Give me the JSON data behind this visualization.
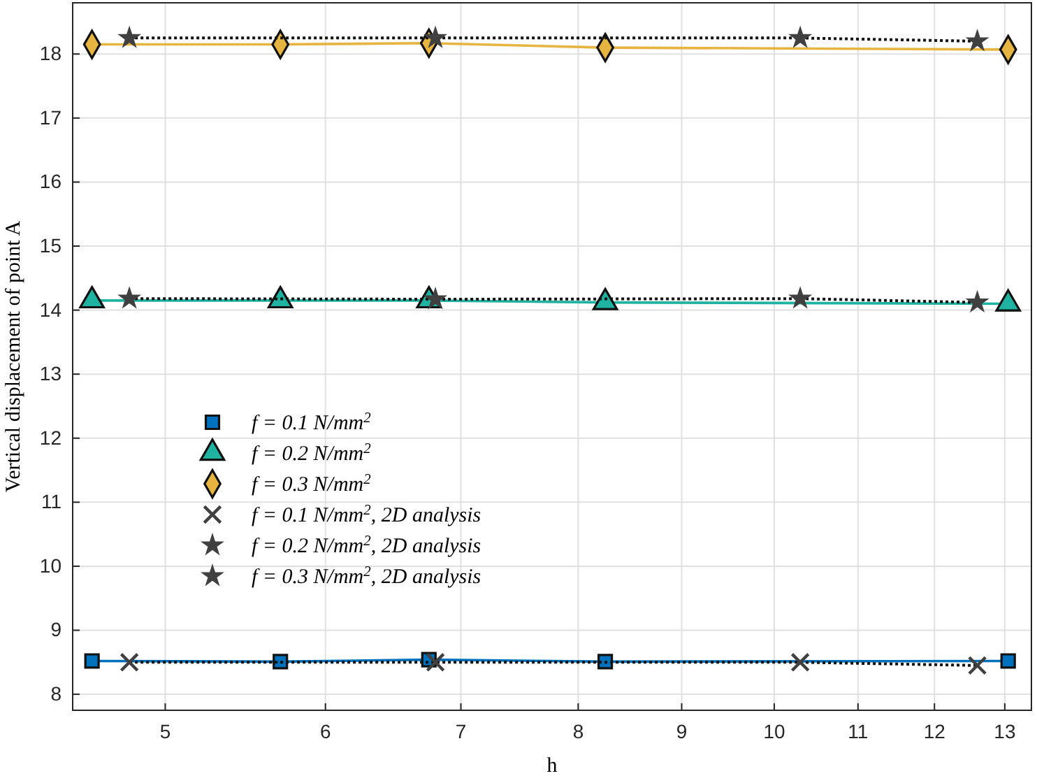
{
  "chart_data": {
    "type": "line",
    "xlabel": "h",
    "ylabel": "Vertical displacement of point A",
    "log": "x",
    "xlim": [
      4.5,
      13.4
    ],
    "xticks": [
      5,
      6,
      7,
      8,
      9,
      10,
      11,
      12,
      13
    ],
    "ylim": [
      7.75,
      18.8
    ],
    "yticks": [
      8,
      9,
      10,
      11,
      12,
      13,
      14,
      15,
      16,
      17,
      18
    ],
    "grid": true,
    "legend": "left",
    "series": [
      {
        "name": "f = 0.1 N/mm$^{2}$",
        "color": "#0072bd",
        "marker": "square",
        "line_style": "solid",
        "x": [
          4.6,
          5.7,
          6.75,
          8.25,
          13.05
        ],
        "values": [
          8.52,
          8.51,
          8.54,
          8.51,
          8.52
        ]
      },
      {
        "name": "f = 0.2 N/mm$^{2}$",
        "color": "#20b2a0",
        "marker": "triangle",
        "line_style": "solid",
        "x": [
          4.6,
          5.7,
          6.75,
          8.25,
          13.05
        ],
        "values": [
          14.15,
          14.15,
          14.15,
          14.12,
          14.1
        ]
      },
      {
        "name": "f = 0.3 N/mm$^{2}$",
        "color": "#e6b440",
        "marker": "diamond",
        "line_style": "solid",
        "x": [
          4.6,
          5.7,
          6.75,
          8.25,
          13.05
        ],
        "values": [
          18.15,
          18.15,
          18.17,
          18.1,
          18.07
        ]
      },
      {
        "name": "f = 0.1 N/mm$^{2}$, 2D analysis",
        "color": "#404040",
        "marker": "cross",
        "line_style": "dotted",
        "x": [
          4.8,
          6.8,
          10.3,
          12.6
        ],
        "values": [
          8.5,
          8.5,
          8.5,
          8.45
        ]
      },
      {
        "name": "f = 0.2 N/mm$^{2}$, 2D analysis",
        "color": "#404040",
        "marker": "star",
        "line_style": "dotted",
        "x": [
          4.8,
          6.8,
          10.3,
          12.6
        ],
        "values": [
          14.18,
          14.17,
          14.18,
          14.12
        ]
      },
      {
        "name": "f = 0.3 N/mm$^{2}$, 2D analysis",
        "color": "#404040",
        "marker": "star",
        "line_style": "dotted",
        "x": [
          4.8,
          6.8,
          10.3,
          12.6
        ],
        "values": [
          18.25,
          18.25,
          18.25,
          18.2
        ]
      }
    ]
  }
}
